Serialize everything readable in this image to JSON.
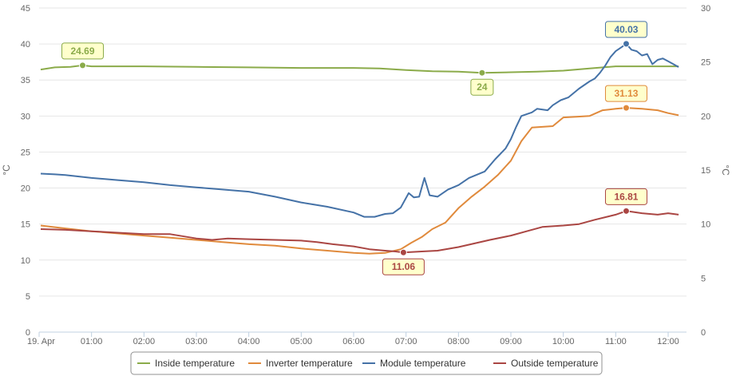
{
  "chart_data": {
    "type": "line",
    "x_start_label": "19. Apr",
    "x_ticks": [
      "01:00",
      "02:00",
      "03:00",
      "04:00",
      "05:00",
      "06:00",
      "07:00",
      "08:00",
      "09:00",
      "10:00",
      "11:00",
      "12:00"
    ],
    "x_range_hours": [
      0.0,
      12.35
    ],
    "left_axis": {
      "unit": "°C",
      "range": [
        0,
        45
      ],
      "ticks": [
        0,
        5,
        10,
        15,
        20,
        25,
        30,
        35,
        40,
        45
      ]
    },
    "right_axis": {
      "unit": "°C",
      "range": [
        0,
        30
      ],
      "ticks": [
        0,
        5,
        10,
        15,
        20,
        25,
        30
      ]
    },
    "grid": "horizontal",
    "legend_position": "bottom-center",
    "series": [
      {
        "name": "Inside temperature",
        "axis": "right",
        "color": "#8bab4a",
        "points": [
          [
            0.03,
            24.3
          ],
          [
            0.3,
            24.5
          ],
          [
            0.6,
            24.55
          ],
          [
            0.83,
            24.69
          ],
          [
            1.0,
            24.6
          ],
          [
            2.0,
            24.6
          ],
          [
            3.0,
            24.55
          ],
          [
            4.0,
            24.5
          ],
          [
            5.0,
            24.45
          ],
          [
            6.0,
            24.45
          ],
          [
            6.5,
            24.4
          ],
          [
            7.0,
            24.25
          ],
          [
            7.5,
            24.15
          ],
          [
            8.0,
            24.1
          ],
          [
            8.45,
            24.0
          ],
          [
            9.0,
            24.05
          ],
          [
            9.5,
            24.1
          ],
          [
            10.0,
            24.2
          ],
          [
            10.5,
            24.4
          ],
          [
            11.0,
            24.6
          ],
          [
            11.5,
            24.6
          ],
          [
            12.0,
            24.6
          ],
          [
            12.2,
            24.6
          ]
        ]
      },
      {
        "name": "Inverter temperature",
        "axis": "left",
        "color": "#e08a3c",
        "points": [
          [
            0.03,
            14.8
          ],
          [
            0.5,
            14.4
          ],
          [
            1.0,
            14.0
          ],
          [
            1.5,
            13.7
          ],
          [
            2.0,
            13.4
          ],
          [
            2.5,
            13.1
          ],
          [
            3.0,
            12.8
          ],
          [
            3.5,
            12.5
          ],
          [
            4.0,
            12.2
          ],
          [
            4.5,
            12.0
          ],
          [
            5.0,
            11.6
          ],
          [
            5.5,
            11.3
          ],
          [
            6.0,
            11.0
          ],
          [
            6.3,
            10.9
          ],
          [
            6.6,
            11.0
          ],
          [
            6.9,
            11.5
          ],
          [
            7.1,
            12.4
          ],
          [
            7.3,
            13.2
          ],
          [
            7.5,
            14.3
          ],
          [
            7.75,
            15.2
          ],
          [
            8.0,
            17.2
          ],
          [
            8.25,
            18.8
          ],
          [
            8.5,
            20.2
          ],
          [
            8.75,
            21.8
          ],
          [
            9.0,
            23.8
          ],
          [
            9.2,
            26.5
          ],
          [
            9.4,
            28.4
          ],
          [
            9.6,
            28.5
          ],
          [
            9.8,
            28.6
          ],
          [
            10.0,
            29.8
          ],
          [
            10.25,
            29.9
          ],
          [
            10.5,
            30.0
          ],
          [
            10.75,
            30.8
          ],
          [
            11.0,
            31.0
          ],
          [
            11.2,
            31.13
          ],
          [
            11.5,
            31.0
          ],
          [
            11.8,
            30.8
          ],
          [
            12.0,
            30.4
          ],
          [
            12.2,
            30.1
          ]
        ]
      },
      {
        "name": "Module temperature",
        "axis": "left",
        "color": "#4572a7",
        "points": [
          [
            0.03,
            22.0
          ],
          [
            0.3,
            21.9
          ],
          [
            0.5,
            21.8
          ],
          [
            1.0,
            21.4
          ],
          [
            1.5,
            21.1
          ],
          [
            2.0,
            20.8
          ],
          [
            2.5,
            20.4
          ],
          [
            3.0,
            20.1
          ],
          [
            3.5,
            19.8
          ],
          [
            4.0,
            19.5
          ],
          [
            4.5,
            18.8
          ],
          [
            5.0,
            18.0
          ],
          [
            5.5,
            17.4
          ],
          [
            6.0,
            16.6
          ],
          [
            6.2,
            16.0
          ],
          [
            6.4,
            16.0
          ],
          [
            6.6,
            16.4
          ],
          [
            6.75,
            16.5
          ],
          [
            6.9,
            17.3
          ],
          [
            7.05,
            19.3
          ],
          [
            7.15,
            18.7
          ],
          [
            7.25,
            18.8
          ],
          [
            7.35,
            21.4
          ],
          [
            7.45,
            19.0
          ],
          [
            7.6,
            18.8
          ],
          [
            7.8,
            19.8
          ],
          [
            8.0,
            20.4
          ],
          [
            8.2,
            21.4
          ],
          [
            8.5,
            22.3
          ],
          [
            8.7,
            24.0
          ],
          [
            8.9,
            25.5
          ],
          [
            9.0,
            26.8
          ],
          [
            9.1,
            28.5
          ],
          [
            9.2,
            30.0
          ],
          [
            9.4,
            30.5
          ],
          [
            9.5,
            31.0
          ],
          [
            9.7,
            30.8
          ],
          [
            9.8,
            31.5
          ],
          [
            9.95,
            32.2
          ],
          [
            10.1,
            32.6
          ],
          [
            10.3,
            33.8
          ],
          [
            10.5,
            34.8
          ],
          [
            10.6,
            35.2
          ],
          [
            10.7,
            36.0
          ],
          [
            10.8,
            37.0
          ],
          [
            10.9,
            38.2
          ],
          [
            11.0,
            39.0
          ],
          [
            11.12,
            39.6
          ],
          [
            11.2,
            40.03
          ],
          [
            11.3,
            39.2
          ],
          [
            11.4,
            39.0
          ],
          [
            11.5,
            38.4
          ],
          [
            11.6,
            38.6
          ],
          [
            11.7,
            37.2
          ],
          [
            11.8,
            37.8
          ],
          [
            11.9,
            38.0
          ],
          [
            12.0,
            37.6
          ],
          [
            12.1,
            37.2
          ],
          [
            12.2,
            36.8
          ]
        ]
      },
      {
        "name": "Outside temperature",
        "axis": "left",
        "color": "#aa4643",
        "points": [
          [
            0.03,
            14.3
          ],
          [
            0.5,
            14.2
          ],
          [
            1.0,
            14.0
          ],
          [
            1.5,
            13.8
          ],
          [
            2.0,
            13.6
          ],
          [
            2.5,
            13.6
          ],
          [
            3.0,
            13.0
          ],
          [
            3.3,
            12.8
          ],
          [
            3.6,
            13.0
          ],
          [
            4.0,
            12.9
          ],
          [
            4.5,
            12.8
          ],
          [
            5.0,
            12.7
          ],
          [
            5.3,
            12.5
          ],
          [
            5.6,
            12.2
          ],
          [
            6.0,
            11.9
          ],
          [
            6.3,
            11.5
          ],
          [
            6.6,
            11.3
          ],
          [
            6.8,
            11.2
          ],
          [
            6.95,
            11.06
          ],
          [
            7.3,
            11.2
          ],
          [
            7.6,
            11.3
          ],
          [
            8.0,
            11.8
          ],
          [
            8.3,
            12.3
          ],
          [
            8.6,
            12.8
          ],
          [
            9.0,
            13.4
          ],
          [
            9.3,
            14.0
          ],
          [
            9.6,
            14.6
          ],
          [
            10.0,
            14.8
          ],
          [
            10.3,
            15.0
          ],
          [
            10.6,
            15.6
          ],
          [
            11.0,
            16.3
          ],
          [
            11.2,
            16.81
          ],
          [
            11.5,
            16.5
          ],
          [
            11.8,
            16.3
          ],
          [
            12.0,
            16.5
          ],
          [
            12.2,
            16.3
          ]
        ]
      }
    ],
    "annotations": [
      {
        "series": 0,
        "x": 0.83,
        "value": "24.69",
        "placement": "above"
      },
      {
        "series": 0,
        "x": 8.45,
        "value": "24",
        "placement": "below"
      },
      {
        "series": 2,
        "x": 11.2,
        "value": "40.03",
        "placement": "above"
      },
      {
        "series": 1,
        "x": 11.2,
        "value": "31.13",
        "placement": "above"
      },
      {
        "series": 3,
        "x": 11.2,
        "value": "16.81",
        "placement": "above"
      },
      {
        "series": 3,
        "x": 6.95,
        "value": "11.06",
        "placement": "below"
      }
    ]
  }
}
